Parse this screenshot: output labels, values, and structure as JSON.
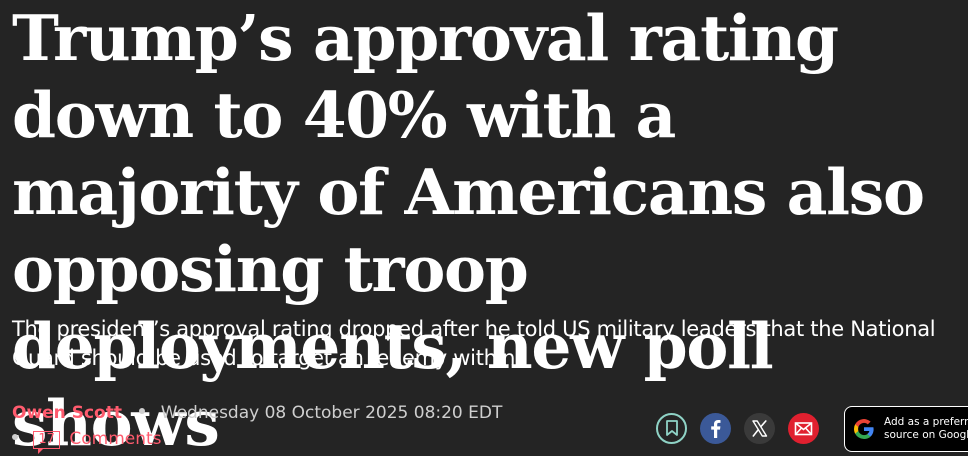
{
  "article": {
    "headline": "Trump’s approval rating down to 40% with a majority of Americans also opposing troop deployments, new poll shows",
    "standfirst": "The president’s approval rating dropped after he told US military leaders that the National Guard should be used to target an ‘enemy within’",
    "author": "Owen Scott",
    "date": "Wednesday 08 October 2025 08:20 EDT",
    "comment_count": "17",
    "comments_label": "Comments"
  },
  "share": {
    "icons": [
      "bookmark-icon",
      "facebook-icon",
      "x-icon",
      "email-icon"
    ]
  },
  "google": {
    "line1": "Add as a preferred",
    "line2": "source on Google"
  },
  "colors": {
    "background": "#242424",
    "accent": "#ff5b6e",
    "bookmark": "#8fd3c6",
    "facebook": "#3b5998",
    "email": "#e0202f"
  }
}
